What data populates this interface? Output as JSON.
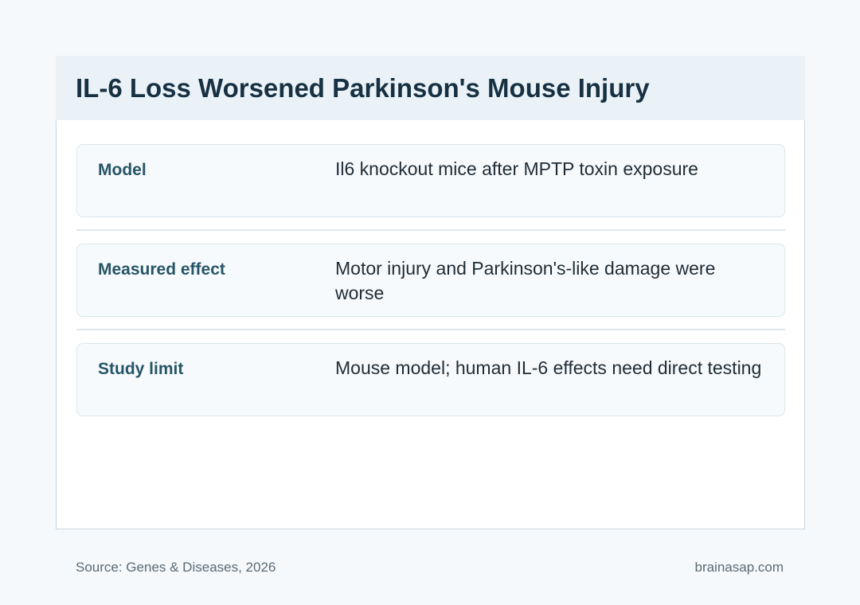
{
  "title": "IL-6 Loss Worsened Parkinson's Mouse Injury",
  "rows": [
    {
      "label": "Model",
      "value": "Il6 knockout mice after MPTP toxin exposure"
    },
    {
      "label": "Measured effect",
      "value": "Motor injury and Parkinson's-like damage were worse"
    },
    {
      "label": "Study limit",
      "value": "Mouse model; human IL-6 effects need direct testing"
    }
  ],
  "footer": {
    "source": "Source: Genes & Diseases, 2026",
    "brand": "brainasap.com"
  },
  "colors": {
    "page_background": "#f5f9fc",
    "header_background": "#eaf2f8",
    "title_text": "#173142",
    "label_text": "#265566",
    "value_text": "#1f2c36"
  }
}
